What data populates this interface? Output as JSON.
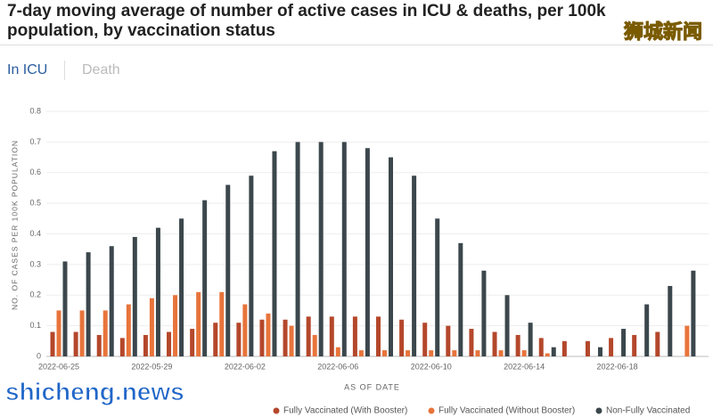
{
  "title": "7-day moving average of number of active cases in ICU & deaths, per 100k population, by vaccination status",
  "tabs": [
    "In ICU",
    "Death"
  ],
  "watermarks": [
    "狮城新闻",
    "shicheng.news"
  ],
  "chart_data": {
    "type": "bar",
    "xlabel": "AS OF DATE",
    "ylabel": "NO. OF CASES PER 100K POPULATION",
    "categories": [
      "2022-06-25",
      null,
      null,
      null,
      "2022-05-29",
      null,
      null,
      null,
      "2022-06-02",
      null,
      null,
      null,
      "2022-06-06",
      null,
      null,
      null,
      "2022-06-10",
      null,
      null,
      null,
      "2022-06-14",
      null,
      null,
      null,
      "2022-06-18",
      null,
      null,
      null
    ],
    "series": [
      {
        "name": "Fully Vaccinated (With Booster)",
        "color": "#b4472b",
        "values": [
          0.08,
          0.08,
          0.07,
          0.06,
          0.07,
          0.08,
          0.09,
          0.11,
          0.11,
          0.12,
          0.12,
          0.13,
          0.13,
          0.13,
          0.13,
          0.12,
          0.11,
          0.1,
          0.09,
          0.08,
          0.07,
          0.06,
          0.05,
          0.05,
          0.06,
          0.07,
          0.08,
          0
        ]
      },
      {
        "name": "Fully Vaccinated (Without Booster)",
        "color": "#e8743b",
        "values": [
          0.15,
          0.15,
          0.15,
          0.17,
          0.19,
          0.2,
          0.21,
          0.21,
          0.17,
          0.14,
          0.1,
          0.07,
          0.03,
          0.02,
          0.02,
          0.02,
          0.02,
          0.02,
          0.02,
          0.02,
          0.02,
          0.01,
          0,
          0,
          0,
          0,
          0,
          0.1
        ]
      },
      {
        "name": "Non-Fully Vaccinated",
        "color": "#3b474c",
        "values": [
          0.31,
          0.34,
          0.36,
          0.39,
          0.42,
          0.45,
          0.51,
          0.56,
          0.59,
          0.67,
          0.7,
          0.7,
          0.7,
          0.68,
          0.65,
          0.59,
          0.45,
          0.37,
          0.28,
          0.2,
          0.11,
          0.03,
          0,
          0.03,
          0.09,
          0.17,
          0.23,
          0.28
        ]
      }
    ],
    "ylim": [
      0,
      0.8
    ],
    "yticks": [
      0,
      0.1,
      0.2,
      0.3,
      0.4,
      0.5,
      0.6,
      0.7,
      0.8
    ],
    "grid": true,
    "legend": "bottom"
  }
}
